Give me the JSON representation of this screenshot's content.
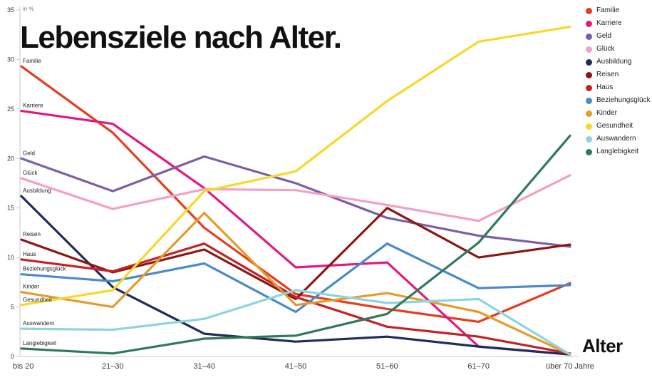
{
  "title": "Lebensziele nach Alter.",
  "chart_data": {
    "type": "line",
    "title": "Lebensziele nach Alter.",
    "xlabel": "Alter",
    "ylabel": "in %",
    "ylim": [
      0,
      35
    ],
    "ytick_step": 5,
    "grid": false,
    "legend_position": "top-right",
    "categories": [
      "bis 20",
      "21–30",
      "31–40",
      "41–50",
      "51–60",
      "61–70",
      "über 70 Jahre"
    ],
    "series": [
      {
        "name": "Familie",
        "color": "#e63c22",
        "values": [
          29.3,
          22.6,
          13.0,
          6.3,
          4.8,
          3.5,
          7.4
        ]
      },
      {
        "name": "Karriere",
        "color": "#e11a81",
        "values": [
          24.8,
          23.5,
          17.0,
          9.0,
          9.5,
          1.0,
          0.2
        ]
      },
      {
        "name": "Geld",
        "color": "#7d5fa5",
        "values": [
          20.0,
          16.7,
          20.2,
          17.5,
          14.0,
          12.2,
          11.1
        ]
      },
      {
        "name": "Glück",
        "color": "#f2a0c6",
        "values": [
          18.0,
          14.9,
          16.9,
          16.8,
          15.3,
          13.7,
          18.3
        ]
      },
      {
        "name": "Ausbildung",
        "color": "#1f2c5c",
        "values": [
          16.2,
          7.0,
          2.3,
          1.5,
          2.0,
          1.0,
          0.2
        ]
      },
      {
        "name": "Reisen",
        "color": "#8c1613",
        "values": [
          11.8,
          8.5,
          10.8,
          5.8,
          15.0,
          10.0,
          11.3
        ]
      },
      {
        "name": "Haus",
        "color": "#c22326",
        "values": [
          9.8,
          8.6,
          11.4,
          6.0,
          3.0,
          2.0,
          0.3
        ]
      },
      {
        "name": "Beziehungsglück",
        "color": "#4a8ac9",
        "values": [
          8.3,
          7.6,
          9.4,
          4.5,
          11.4,
          6.9,
          7.2
        ]
      },
      {
        "name": "Kinder",
        "color": "#e49b2d",
        "values": [
          6.5,
          5.0,
          14.5,
          5.2,
          6.4,
          4.5,
          0.2
        ]
      },
      {
        "name": "Gesundheit",
        "color": "#f8d829",
        "values": [
          5.2,
          6.7,
          16.7,
          18.7,
          25.8,
          31.8,
          33.3
        ]
      },
      {
        "name": "Auswandern",
        "color": "#8ed4dd",
        "values": [
          2.8,
          2.7,
          3.8,
          6.7,
          5.4,
          5.8,
          0.2
        ]
      },
      {
        "name": "Langlebigkeit",
        "color": "#31795b",
        "values": [
          0.8,
          0.3,
          1.8,
          2.1,
          4.3,
          11.5,
          22.3
        ]
      }
    ]
  }
}
